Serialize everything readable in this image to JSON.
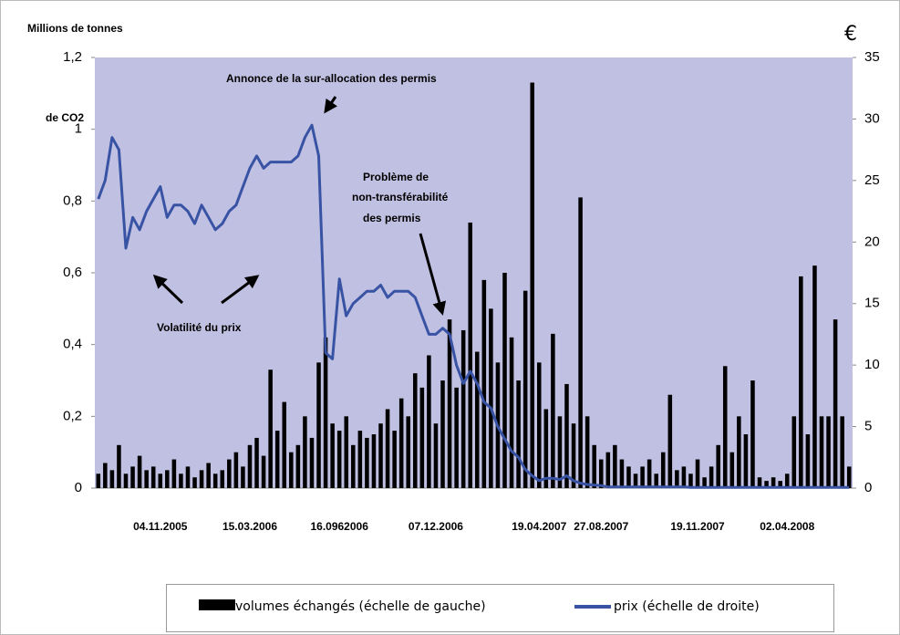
{
  "chart_data": {
    "type": "combo",
    "y_label_lines": [
      "Millions de tonnes",
      "de CO2"
    ],
    "y2_label": "€",
    "annotations": [
      "Annonce de la sur-allocation des permis",
      "Problème de",
      "non-transférabilité",
      "des permis",
      "Volatilité du prix"
    ],
    "categories": [
      null,
      null,
      null,
      null,
      null,
      null,
      null,
      null,
      null,
      "04.11.2005",
      null,
      null,
      null,
      null,
      null,
      null,
      null,
      null,
      null,
      null,
      null,
      null,
      "15.03.2006",
      null,
      null,
      null,
      null,
      null,
      null,
      null,
      null,
      null,
      null,
      null,
      null,
      "16.0962006",
      null,
      null,
      null,
      null,
      null,
      null,
      null,
      null,
      null,
      null,
      null,
      null,
      null,
      "07.12.2006",
      null,
      null,
      null,
      null,
      null,
      null,
      null,
      null,
      null,
      null,
      null,
      null,
      null,
      null,
      "19.04.2007",
      null,
      null,
      null,
      null,
      null,
      null,
      null,
      null,
      "27.08.2007",
      null,
      null,
      null,
      null,
      null,
      null,
      null,
      null,
      null,
      null,
      null,
      null,
      null,
      "19.11.2007",
      null,
      null,
      null,
      null,
      null,
      null,
      null,
      null,
      null,
      null,
      null,
      null,
      "02.04.2008",
      null,
      null,
      null,
      null,
      null,
      null,
      null,
      null,
      null
    ],
    "series": [
      {
        "name": "volumes échangés (échelle de gauche)",
        "type": "bar",
        "color": "#000000",
        "values": [
          0.04,
          0.07,
          0.05,
          0.12,
          0.04,
          0.06,
          0.09,
          0.05,
          0.06,
          0.04,
          0.05,
          0.08,
          0.04,
          0.06,
          0.03,
          0.05,
          0.07,
          0.04,
          0.05,
          0.08,
          0.1,
          0.06,
          0.12,
          0.14,
          0.09,
          0.33,
          0.16,
          0.24,
          0.1,
          0.12,
          0.2,
          0.14,
          0.35,
          0.42,
          0.18,
          0.16,
          0.2,
          0.12,
          0.16,
          0.14,
          0.15,
          0.18,
          0.22,
          0.16,
          0.25,
          0.2,
          0.32,
          0.28,
          0.37,
          0.18,
          0.3,
          0.47,
          0.28,
          0.44,
          0.74,
          0.38,
          0.58,
          0.5,
          0.35,
          0.6,
          0.42,
          0.3,
          0.55,
          1.13,
          0.35,
          0.22,
          0.43,
          0.2,
          0.29,
          0.18,
          0.81,
          0.2,
          0.12,
          0.08,
          0.1,
          0.12,
          0.08,
          0.06,
          0.04,
          0.06,
          0.08,
          0.04,
          0.1,
          0.26,
          0.05,
          0.06,
          0.04,
          0.08,
          0.03,
          0.06,
          0.12,
          0.34,
          0.1,
          0.2,
          0.15,
          0.3,
          0.03,
          0.02,
          0.03,
          0.02,
          0.04,
          0.2,
          0.59,
          0.15,
          0.62,
          0.2,
          0.2,
          0.47,
          0.2,
          0.06
        ]
      },
      {
        "name": "prix (échelle de droite)",
        "type": "line",
        "axis": "y2",
        "color": "#3953a4",
        "values": [
          23.5,
          25,
          28.5,
          27.5,
          19.5,
          22,
          21,
          22.5,
          23.5,
          24.5,
          22,
          23,
          23,
          22.5,
          21.5,
          23,
          22,
          21,
          21.5,
          22.5,
          23,
          24.5,
          26,
          27,
          26,
          26.5,
          26.5,
          26.5,
          26.5,
          27,
          28.5,
          29.5,
          27,
          11,
          10.5,
          17,
          14,
          15,
          15.5,
          16,
          16,
          16.5,
          15.5,
          16,
          16,
          16,
          15.5,
          14,
          12.5,
          12.5,
          13,
          12.5,
          10,
          8.5,
          9.5,
          8.5,
          7,
          6.5,
          5,
          4,
          3,
          2.5,
          1.5,
          1,
          0.6,
          0.8,
          0.8,
          0.7,
          1,
          0.6,
          0.4,
          0.3,
          0.25,
          0.2,
          0.1,
          0.1,
          0.1,
          0.1,
          0.1,
          0.1,
          0.1,
          0.1,
          0.1,
          0.1,
          0.1,
          0.1,
          0.05,
          0.05,
          0.05,
          0.05,
          0.05,
          0.05,
          0.05,
          0.05,
          0.05,
          0.05,
          0.05,
          0.05,
          0.05,
          0.05,
          0.05,
          0.05,
          0.05,
          0.05,
          0.05,
          0.05,
          0.05,
          0.05,
          0.05,
          0.05
        ]
      }
    ],
    "ylim": [
      0,
      1.2
    ],
    "yticks": [
      0,
      {
        "value": 0.2,
        "label": "0,2"
      },
      {
        "value": 0.4,
        "label": "0,4"
      },
      {
        "value": 0.6,
        "label": "0,6"
      },
      {
        "value": 0.8,
        "label": "0,8"
      },
      1,
      {
        "value": 1.2,
        "label": "1,2"
      }
    ],
    "y2lim": [
      0,
      35
    ],
    "y2ticks": [
      0,
      5,
      10,
      15,
      20,
      25,
      30,
      35
    ],
    "grid": false,
    "plot_background": "#c0c0e2",
    "legend": "bottom"
  }
}
